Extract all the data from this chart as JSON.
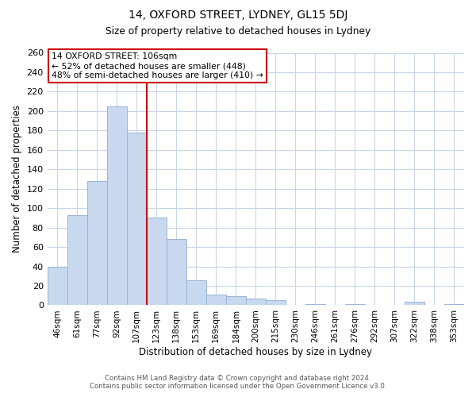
{
  "title": "14, OXFORD STREET, LYDNEY, GL15 5DJ",
  "subtitle": "Size of property relative to detached houses in Lydney",
  "xlabel": "Distribution of detached houses by size in Lydney",
  "ylabel": "Number of detached properties",
  "bar_labels": [
    "46sqm",
    "61sqm",
    "77sqm",
    "92sqm",
    "107sqm",
    "123sqm",
    "138sqm",
    "153sqm",
    "169sqm",
    "184sqm",
    "200sqm",
    "215sqm",
    "230sqm",
    "246sqm",
    "261sqm",
    "276sqm",
    "292sqm",
    "307sqm",
    "322sqm",
    "338sqm",
    "353sqm"
  ],
  "bar_values": [
    40,
    93,
    128,
    205,
    178,
    90,
    68,
    26,
    11,
    9,
    7,
    5,
    0,
    1,
    0,
    1,
    0,
    0,
    4,
    0,
    1
  ],
  "bar_color": "#c8d8ef",
  "bar_edge_color": "#99b5d9",
  "vline_index": 4,
  "vline_color": "#cc0000",
  "annotation_title": "14 OXFORD STREET: 106sqm",
  "annotation_line1": "← 52% of detached houses are smaller (448)",
  "annotation_line2": "48% of semi-detached houses are larger (410) →",
  "annotation_box_color": "#ffffff",
  "annotation_box_edge": "#cc0000",
  "ylim": [
    0,
    260
  ],
  "yticks": [
    0,
    20,
    40,
    60,
    80,
    100,
    120,
    140,
    160,
    180,
    200,
    220,
    240,
    260
  ],
  "footer_line1": "Contains HM Land Registry data © Crown copyright and database right 2024.",
  "footer_line2": "Contains public sector information licensed under the Open Government Licence v3.0.",
  "bg_color": "#ffffff",
  "grid_color": "#c8d4e8"
}
